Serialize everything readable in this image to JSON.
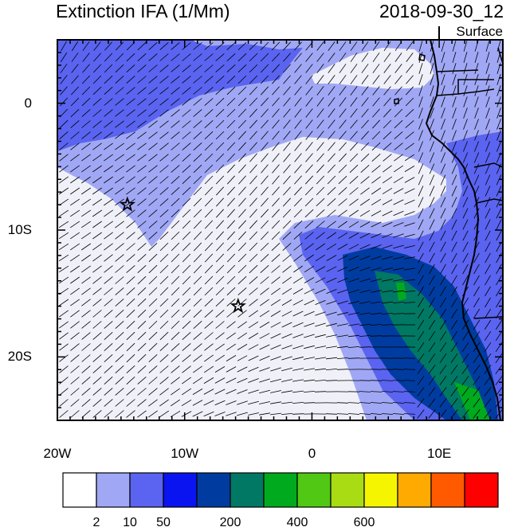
{
  "header": {
    "title": "Extinction IFA (1/Mm)",
    "timestamp": "2018-09-30_12",
    "level": "Surface"
  },
  "axes": {
    "lat_labels": [
      "0",
      "10S",
      "20S"
    ],
    "lon_labels": [
      "20W",
      "10W",
      "0",
      "10E"
    ],
    "lat_values": [
      0,
      -10,
      -20
    ],
    "lon_values": [
      -20,
      -10,
      0,
      10
    ],
    "lat_range": [
      -25,
      5
    ],
    "lon_range": [
      -20,
      15
    ]
  },
  "colorbar": {
    "colors": [
      "#ffffff",
      "#a0a8f5",
      "#5a64f0",
      "#0a14f0",
      "#003ca0",
      "#007864",
      "#00aa1e",
      "#50c814",
      "#aadc14",
      "#f5f500",
      "#ffaa00",
      "#ff5a00",
      "#ff0000"
    ],
    "labels": [
      "2",
      "10",
      "50",
      "200",
      "400",
      "600"
    ]
  },
  "markers": [
    {
      "name": "star-marker-1",
      "lon": -14.5,
      "lat": -8
    },
    {
      "name": "star-marker-2",
      "lon": -5.8,
      "lat": -16
    }
  ],
  "colors": {
    "white": "#f0f0f8",
    "light": "#a0a8f5",
    "medium": "#5a64f0",
    "dark": "#003ca0",
    "teal": "#007864",
    "green": "#00aa1e"
  }
}
